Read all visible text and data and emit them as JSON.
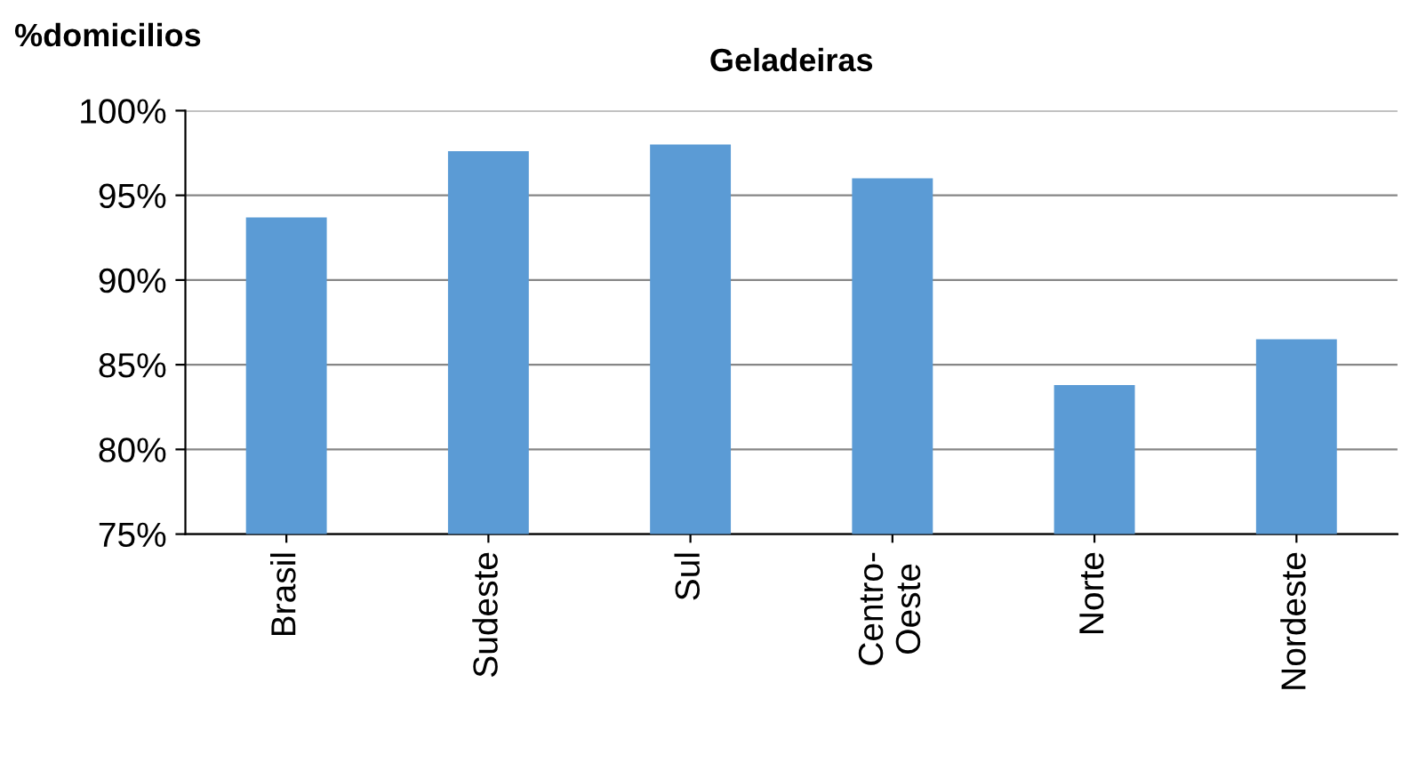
{
  "chart_data": {
    "type": "bar",
    "title": "Geladeiras",
    "ylabel": "%domicilios",
    "categories": [
      "Brasil",
      "Sudeste",
      "Sul",
      "Centro-\nOeste",
      "Norte",
      "Nordeste"
    ],
    "values": [
      93.7,
      97.6,
      98.0,
      96.0,
      83.8,
      86.5
    ],
    "color": "#5b9bd5",
    "ylim": [
      75,
      100
    ],
    "yticks": [
      {
        "value": 75,
        "label": "75%"
      },
      {
        "value": 80,
        "label": "80%"
      },
      {
        "value": 85,
        "label": "85%"
      },
      {
        "value": 90,
        "label": "90%"
      },
      {
        "value": 95,
        "label": "95%"
      },
      {
        "value": 100,
        "label": "100%"
      }
    ],
    "grid": "y",
    "legend": false
  }
}
